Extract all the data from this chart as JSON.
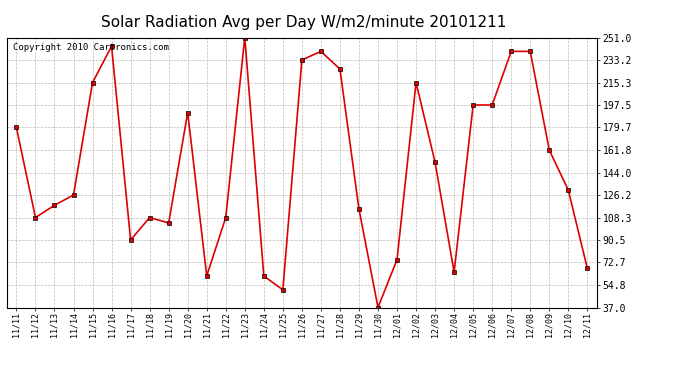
{
  "title": "Solar Radiation Avg per Day W/m2/minute 20101211",
  "copyright": "Copyright 2010 Cartronics.com",
  "labels": [
    "11/11",
    "11/12",
    "11/13",
    "11/14",
    "11/15",
    "11/16",
    "11/17",
    "11/18",
    "11/19",
    "11/20",
    "11/21",
    "11/22",
    "11/23",
    "11/24",
    "11/25",
    "11/26",
    "11/27",
    "11/28",
    "11/29",
    "11/30",
    "12/01",
    "12/02",
    "12/03",
    "12/04",
    "12/05",
    "12/06",
    "12/07",
    "12/08",
    "12/09",
    "12/10",
    "12/11"
  ],
  "values": [
    179.7,
    108.3,
    118.0,
    126.2,
    215.3,
    244.0,
    90.5,
    108.3,
    104.0,
    191.5,
    62.0,
    108.3,
    251.0,
    62.0,
    51.0,
    233.2,
    240.0,
    226.0,
    115.0,
    37.0,
    75.0,
    215.3,
    152.0,
    65.0,
    197.5,
    197.5,
    240.0,
    240.0,
    161.8,
    130.0,
    68.0
  ],
  "line_color": "#dd0000",
  "marker_color": "#dd0000",
  "bg_color": "#ffffff",
  "grid_color": "#bbbbbb",
  "yticks": [
    37.0,
    54.8,
    72.7,
    90.5,
    108.3,
    126.2,
    144.0,
    161.8,
    179.7,
    197.5,
    215.3,
    233.2,
    251.0
  ],
  "ylim": [
    37.0,
    251.0
  ],
  "title_fontsize": 11,
  "copyright_fontsize": 6.5,
  "xtick_fontsize": 6,
  "ytick_fontsize": 7
}
